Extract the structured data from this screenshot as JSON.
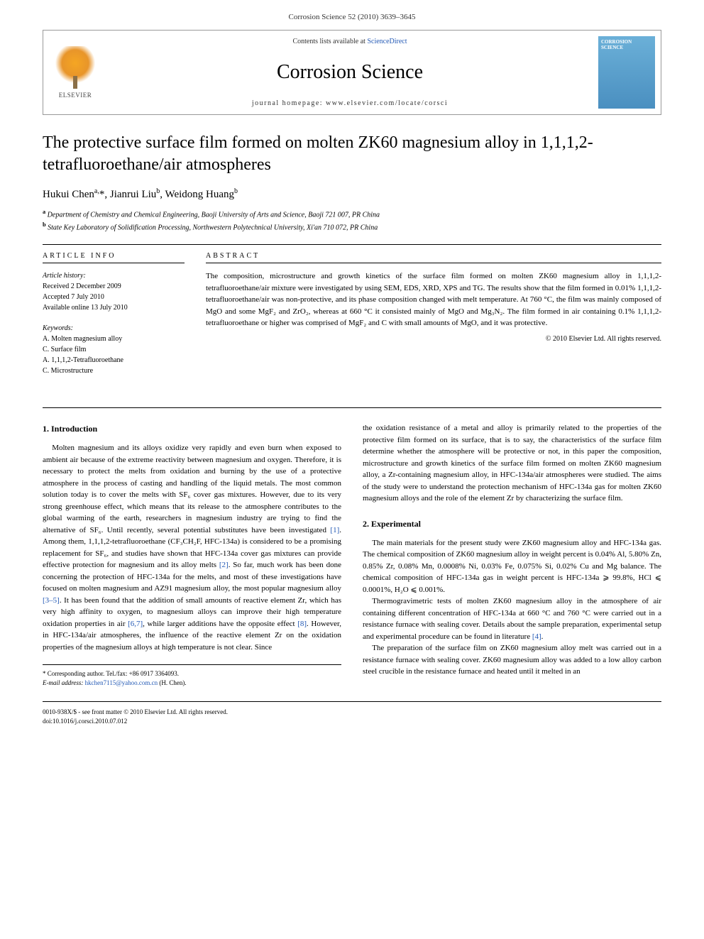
{
  "citation_line": "Corrosion Science 52 (2010) 3639–3645",
  "header": {
    "contents_pre": "Contents lists available at ",
    "contents_link": "ScienceDirect",
    "journal_name": "Corrosion Science",
    "homepage_label": "journal homepage: www.elsevier.com/locate/corsci",
    "elsevier_label": "ELSEVIER",
    "cover_title": "CORROSION SCIENCE"
  },
  "article": {
    "title": "The protective surface film formed on molten ZK60 magnesium alloy in 1,1,1,2-tetrafluoroethane/air atmospheres",
    "authors_html": "Hukui Chen<sup>a,</sup>*, Jianrui Liu<sup>b</sup>, Weidong Huang<sup>b</sup>",
    "affiliations": [
      {
        "sup": "a",
        "text": "Department of Chemistry and Chemical Engineering, Baoji University of Arts and Science, Baoji 721 007, PR China"
      },
      {
        "sup": "b",
        "text": "State Key Laboratory of Solidification Processing, Northwestern Polytechnical University, Xi'an 710 072, PR China"
      }
    ]
  },
  "info": {
    "heading": "ARTICLE INFO",
    "history_label": "Article history:",
    "history": [
      "Received 2 December 2009",
      "Accepted 7 July 2010",
      "Available online 13 July 2010"
    ],
    "keywords_label": "Keywords:",
    "keywords": [
      "A. Molten magnesium alloy",
      "C. Surface film",
      "A. 1,1,1,2-Tetrafluoroethane",
      "C. Microstructure"
    ]
  },
  "abstract": {
    "heading": "ABSTRACT",
    "text": "The composition, microstructure and growth kinetics of the surface film formed on molten ZK60 magnesium alloy in 1,1,1,2-tetrafluoroethane/air mixture were investigated by using SEM, EDS, XRD, XPS and TG. The results show that the film formed in 0.01% 1,1,1,2-tetrafluoroethane/air was non-protective, and its phase composition changed with melt temperature. At 760 °C, the film was mainly composed of MgO and some MgF₂ and ZrO₂, whereas at 660 °C it consisted mainly of MgO and Mg₃N₂. The film formed in air containing 0.1% 1,1,1,2-tetrafluoroethane or higher was comprised of MgF₂ and C with small amounts of MgO, and it was protective.",
    "copyright": "© 2010 Elsevier Ltd. All rights reserved."
  },
  "body": {
    "s1_heading": "1. Introduction",
    "s1_p1": "Molten magnesium and its alloys oxidize very rapidly and even burn when exposed to ambient air because of the extreme reactivity between magnesium and oxygen. Therefore, it is necessary to protect the melts from oxidation and burning by the use of a protective atmosphere in the process of casting and handling of the liquid metals. The most common solution today is to cover the melts with SF₆ cover gas mixtures. However, due to its very strong greenhouse effect, which means that its release to the atmosphere contributes to the global warming of the earth, researchers in magnesium industry are trying to find the alternative of SF₆. Until recently, several potential substitutes have been investigated [1]. Among them, 1,1,1,2-tetrafluoroethane (CF₃CH₂F, HFC-134a) is considered to be a promising replacement for SF₆, and studies have shown that HFC-134a cover gas mixtures can provide effective protection for magnesium and its alloy melts [2]. So far, much work has been done concerning the protection of HFC-134a for the melts, and most of these investigations have focused on molten magnesium and AZ91 magnesium alloy, the most popular magnesium alloy [3–5]. It has been found that the addition of small amounts of reactive element Zr, which has very high affinity to oxygen, to magnesium alloys can improve their high temperature oxidation properties in air [6,7], while larger additions have the opposite effect [8]. However, in HFC-134a/air atmospheres, the influence of the reactive element Zr on the oxidation properties of the magnesium alloys at high temperature is not clear. Since",
    "s1_p2": "the oxidation resistance of a metal and alloy is primarily related to the properties of the protective film formed on its surface, that is to say, the characteristics of the surface film determine whether the atmosphere will be protective or not, in this paper the composition, microstructure and growth kinetics of the surface film formed on molten ZK60 magnesium alloy, a Zr-containing magnesium alloy, in HFC-134a/air atmospheres were studied. The aims of the study were to understand the protection mechanism of HFC-134a gas for molten ZK60 magnesium alloys and the role of the element Zr by characterizing the surface film.",
    "s2_heading": "2. Experimental",
    "s2_p1": "The main materials for the present study were ZK60 magnesium alloy and HFC-134a gas. The chemical composition of ZK60 magnesium alloy in weight percent is 0.04% Al, 5.80% Zn, 0.85% Zr, 0.08% Mn, 0.0008% Ni, 0.03% Fe, 0.075% Si, 0.02% Cu and Mg balance. The chemical composition of HFC-134a gas in weight percent is HFC-134a ⩾ 99.8%, HCl ⩽ 0.0001%, H₂O ⩽ 0.001%.",
    "s2_p2": "Thermogravimetric tests of molten ZK60 magnesium alloy in the atmosphere of air containing different concentration of HFC-134a at 660 °C and 760 °C were carried out in a resistance furnace with sealing cover. Details about the sample preparation, experimental setup and experimental procedure can be found in literature [4].",
    "s2_p3": "The preparation of the surface film on ZK60 magnesium alloy melt was carried out in a resistance furnace with sealing cover. ZK60 magnesium alloy was added to a low alloy carbon steel crucible in the resistance furnace and heated until it melted in an"
  },
  "corr": {
    "star": "* ",
    "line1": "Corresponding author. Tel./fax: +86 0917 3364093.",
    "email_label": "E-mail address: ",
    "email": "hkchen7115@yahoo.com.cn",
    "email_after": " (H. Chen)."
  },
  "footer": {
    "line1": "0010-938X/$ - see front matter © 2010 Elsevier Ltd. All rights reserved.",
    "line2": "doi:10.1016/j.corsci.2010.07.012"
  },
  "colors": {
    "link": "#2359b5",
    "rule": "#000000",
    "cover_bg_top": "#6bb0d8",
    "cover_bg_bottom": "#4a8fc0",
    "elsevier_orange": "#f5a623"
  },
  "typography": {
    "title_fontsize": 24,
    "journal_fontsize": 28,
    "body_fontsize": 11,
    "heading_fontsize": 12,
    "small_fontsize": 10
  }
}
